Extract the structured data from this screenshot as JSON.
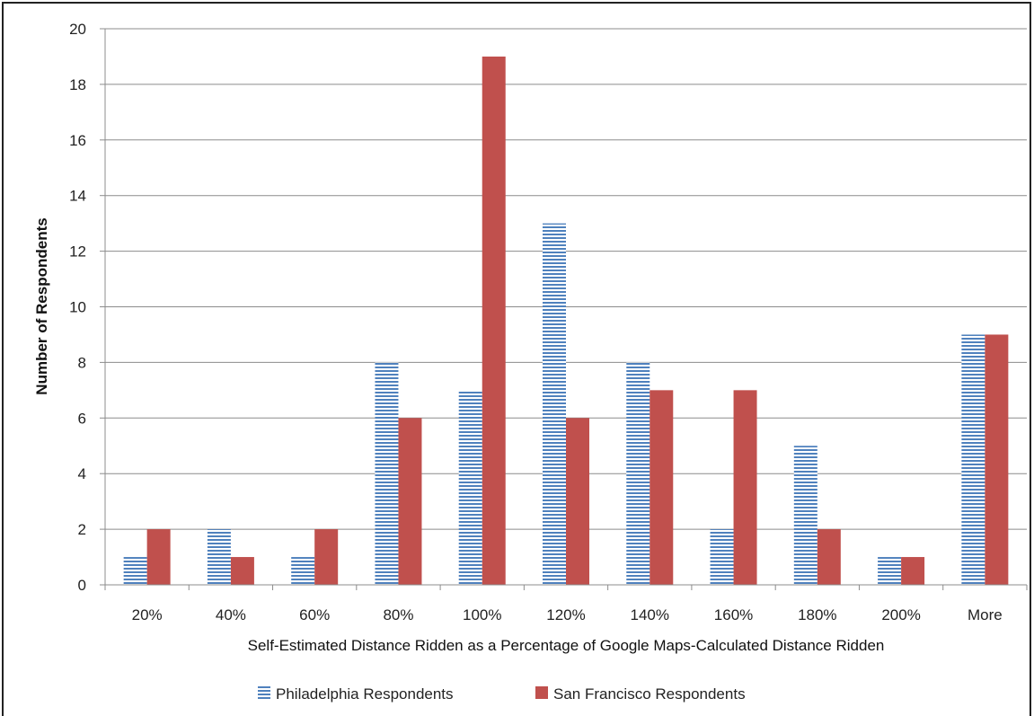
{
  "chart_data": {
    "type": "bar",
    "title": "",
    "xlabel": "Self-Estimated Distance Ridden as a Percentage of Google Maps-Calculated Distance Ridden",
    "ylabel": "Number of Respondents",
    "categories": [
      "20%",
      "40%",
      "60%",
      "80%",
      "100%",
      "120%",
      "140%",
      "160%",
      "180%",
      "200%",
      "More"
    ],
    "ylim": [
      0,
      20
    ],
    "yticks": [
      "0",
      "2",
      "4",
      "6",
      "8",
      "10",
      "12",
      "14",
      "16",
      "18",
      "20"
    ],
    "grid": true,
    "legend_position": "bottom",
    "series": [
      {
        "name": "Philadelphia Respondents",
        "values": [
          1,
          2,
          1,
          8,
          7,
          13,
          8,
          2,
          5,
          1,
          9
        ],
        "color": "#4f81bd",
        "pattern": "horizontal-stripes"
      },
      {
        "name": "San Francisco Respondents",
        "values": [
          2,
          1,
          2,
          6,
          19,
          6,
          7,
          7,
          2,
          1,
          9
        ],
        "color": "#c0504d",
        "pattern": "solid"
      }
    ]
  }
}
